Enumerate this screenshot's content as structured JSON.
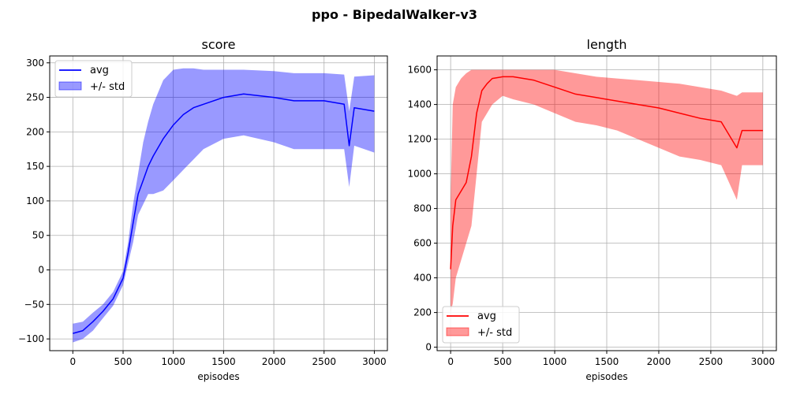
{
  "suptitle": "ppo - BipedalWalker-v3",
  "chart_data": [
    {
      "type": "line",
      "title": "score",
      "xlabel": "episodes",
      "ylabel": "",
      "xlim": [
        -230,
        3130
      ],
      "ylim": [
        -117,
        310
      ],
      "xticks": [
        0,
        500,
        1000,
        1500,
        2000,
        2500,
        3000
      ],
      "yticks": [
        -100,
        -50,
        0,
        50,
        100,
        150,
        200,
        250,
        300
      ],
      "grid": true,
      "legend_position": "top-left",
      "legend": [
        "avg",
        "+/- std"
      ],
      "avg_color": "#0000ff",
      "std_color": "#0000ff",
      "series": [
        {
          "name": "avg",
          "x": [
            0,
            100,
            200,
            300,
            400,
            500,
            550,
            600,
            650,
            700,
            750,
            800,
            900,
            1000,
            1100,
            1200,
            1300,
            1500,
            1700,
            2000,
            2200,
            2500,
            2700,
            2750,
            2800,
            3000
          ],
          "values": [
            -92,
            -88,
            -75,
            -60,
            -42,
            -12,
            25,
            68,
            110,
            130,
            150,
            165,
            190,
            210,
            225,
            235,
            240,
            250,
            255,
            250,
            245,
            245,
            240,
            180,
            235,
            230
          ]
        },
        {
          "name": "+/- std",
          "x": [
            0,
            100,
            200,
            300,
            400,
            500,
            550,
            600,
            650,
            700,
            750,
            800,
            900,
            1000,
            1100,
            1200,
            1300,
            1500,
            1700,
            2000,
            2200,
            2500,
            2700,
            2750,
            2800,
            3000
          ],
          "lower": [
            -105,
            -100,
            -88,
            -70,
            -52,
            -22,
            10,
            40,
            80,
            95,
            110,
            110,
            115,
            130,
            145,
            160,
            175,
            190,
            195,
            185,
            175,
            175,
            175,
            120,
            180,
            170
          ],
          "upper": [
            -78,
            -75,
            -62,
            -50,
            -32,
            -2,
            40,
            95,
            140,
            185,
            215,
            240,
            275,
            290,
            292,
            292,
            290,
            290,
            290,
            288,
            285,
            285,
            283,
            230,
            280,
            282
          ]
        }
      ]
    },
    {
      "type": "line",
      "title": "length",
      "xlabel": "episodes",
      "ylabel": "",
      "xlim": [
        -130,
        3130
      ],
      "ylim": [
        -20,
        1680
      ],
      "xticks": [
        0,
        500,
        1000,
        1500,
        2000,
        2500,
        3000
      ],
      "yticks": [
        0,
        200,
        400,
        600,
        800,
        1000,
        1200,
        1400,
        1600
      ],
      "grid": true,
      "legend_position": "bottom-left",
      "legend": [
        "avg",
        "+/- std"
      ],
      "avg_color": "#ff0000",
      "std_color": "#ff0000",
      "series": [
        {
          "name": "avg",
          "x": [
            0,
            20,
            50,
            100,
            150,
            200,
            250,
            300,
            350,
            400,
            500,
            600,
            800,
            1000,
            1200,
            1400,
            1600,
            1800,
            2000,
            2200,
            2400,
            2600,
            2750,
            2800,
            3000
          ],
          "values": [
            450,
            700,
            850,
            900,
            950,
            1100,
            1350,
            1480,
            1520,
            1550,
            1560,
            1560,
            1540,
            1500,
            1460,
            1440,
            1420,
            1400,
            1380,
            1350,
            1320,
            1300,
            1150,
            1250,
            1250
          ]
        },
        {
          "name": "+/- std",
          "x": [
            0,
            20,
            50,
            100,
            150,
            200,
            250,
            300,
            350,
            400,
            500,
            600,
            800,
            1000,
            1200,
            1400,
            1600,
            1800,
            2000,
            2200,
            2400,
            2600,
            2750,
            2800,
            3000
          ],
          "lower": [
            200,
            250,
            400,
            500,
            600,
            700,
            1000,
            1300,
            1350,
            1400,
            1450,
            1430,
            1400,
            1350,
            1300,
            1280,
            1250,
            1200,
            1150,
            1100,
            1080,
            1050,
            850,
            1050,
            1050
          ],
          "upper": [
            850,
            1400,
            1500,
            1550,
            1580,
            1600,
            1600,
            1600,
            1600,
            1600,
            1600,
            1600,
            1600,
            1600,
            1580,
            1560,
            1550,
            1540,
            1530,
            1520,
            1500,
            1480,
            1450,
            1470,
            1470
          ]
        }
      ]
    }
  ]
}
